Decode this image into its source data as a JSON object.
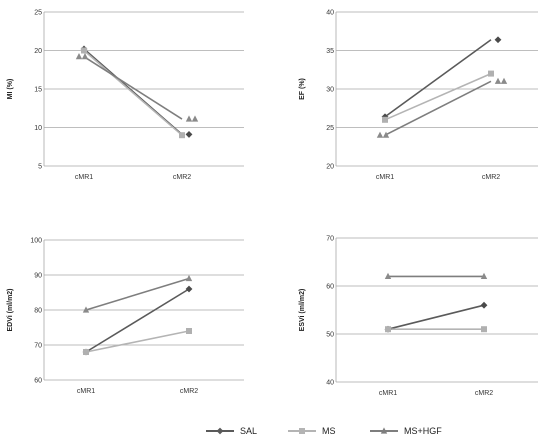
{
  "chart_data": [
    {
      "type": "line",
      "ylabel": "MI (%)",
      "xlabel": "",
      "ylim": [
        5,
        25
      ],
      "yticks": [
        5,
        10,
        15,
        20,
        25
      ],
      "categories": [
        "cMR1",
        "cMR2"
      ],
      "series": [
        {
          "name": "SAL",
          "values": [
            20.2,
            9.1
          ]
        },
        {
          "name": "MS",
          "values": [
            20.0,
            9.0
          ]
        },
        {
          "name": "MS+HGF",
          "values": [
            19.2,
            11.1
          ]
        }
      ]
    },
    {
      "type": "line",
      "ylabel": "EF (%)",
      "xlabel": "",
      "ylim": [
        20,
        40
      ],
      "yticks": [
        20,
        25,
        30,
        35,
        40
      ],
      "categories": [
        "cMR1",
        "cMR2"
      ],
      "series": [
        {
          "name": "SAL",
          "values": [
            26.4,
            36.4
          ]
        },
        {
          "name": "MS",
          "values": [
            26.0,
            32.0
          ]
        },
        {
          "name": "MS+HGF",
          "values": [
            24.0,
            31.0
          ]
        }
      ]
    },
    {
      "type": "line",
      "ylabel": "EDVi (ml/m2)",
      "xlabel": "",
      "ylim": [
        60,
        100
      ],
      "yticks": [
        60,
        70,
        80,
        90,
        100
      ],
      "categories": [
        "cMR1",
        "cMR2"
      ],
      "series": [
        {
          "name": "SAL",
          "values": [
            68,
            86
          ]
        },
        {
          "name": "MS",
          "values": [
            68,
            74
          ]
        },
        {
          "name": "MS+HGF",
          "values": [
            80,
            89
          ]
        }
      ]
    },
    {
      "type": "line",
      "ylabel": "ESVi (ml/m2)",
      "xlabel": "",
      "ylim": [
        40,
        70
      ],
      "yticks": [
        40,
        50,
        60,
        70
      ],
      "categories": [
        "cMR1",
        "cMR2"
      ],
      "series": [
        {
          "name": "SAL",
          "values": [
            51,
            56
          ]
        },
        {
          "name": "MS",
          "values": [
            51,
            51
          ]
        },
        {
          "name": "MS+HGF",
          "values": [
            62,
            62
          ]
        }
      ]
    }
  ],
  "legend": {
    "placement": "bottom",
    "entries": [
      {
        "name": "SAL",
        "color": "#5a5a5a",
        "marker": "diamond"
      },
      {
        "name": "MS",
        "color": "#b4b4b4",
        "marker": "square"
      },
      {
        "name": "MS+HGF",
        "color": "#7e7e7e",
        "marker": "triangle"
      }
    ]
  }
}
